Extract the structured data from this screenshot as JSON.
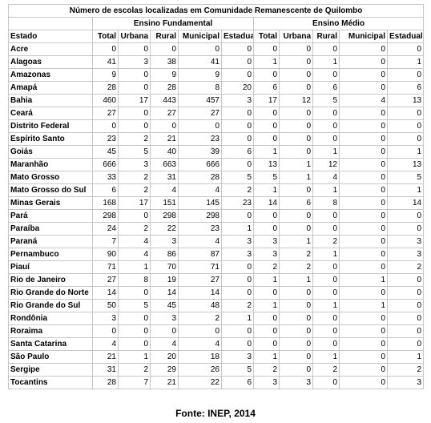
{
  "title": "Número de escolas localizadas em Comunidade Remanescente de Quilombo",
  "group_headers": [
    "Ensino Fundamental",
    "Ensino Médio"
  ],
  "columns": [
    "Estado",
    "Total",
    "Urbana",
    "Rural",
    "Municipal",
    "Estadual",
    "Total",
    "Urbana",
    "Rural",
    "Municipal",
    "Estadual"
  ],
  "rows": [
    [
      "Acre",
      "0",
      "0",
      "0",
      "0",
      "0",
      "0",
      "0",
      "0",
      "0",
      "0"
    ],
    [
      "Alagoas",
      "41",
      "3",
      "38",
      "41",
      "0",
      "1",
      "0",
      "1",
      "0",
      "1"
    ],
    [
      "Amazonas",
      "9",
      "0",
      "9",
      "9",
      "0",
      "0",
      "0",
      "0",
      "0",
      "0"
    ],
    [
      "Amapá",
      "28",
      "0",
      "28",
      "8",
      "20",
      "6",
      "0",
      "6",
      "0",
      "6"
    ],
    [
      "Bahia",
      "460",
      "17",
      "443",
      "457",
      "3",
      "17",
      "12",
      "5",
      "4",
      "13"
    ],
    [
      "Ceará",
      "27",
      "0",
      "27",
      "27",
      "0",
      "0",
      "0",
      "0",
      "0",
      "0"
    ],
    [
      "Distrito Federal",
      "0",
      "0",
      "0",
      "0",
      "0",
      "0",
      "0",
      "0",
      "0",
      "0"
    ],
    [
      "Espírito Santo",
      "23",
      "2",
      "21",
      "23",
      "0",
      "0",
      "0",
      "0",
      "0",
      "0"
    ],
    [
      "Goiás",
      "45",
      "5",
      "40",
      "39",
      "6",
      "1",
      "0",
      "1",
      "0",
      "1"
    ],
    [
      "Maranhão",
      "666",
      "3",
      "663",
      "666",
      "0",
      "13",
      "1",
      "12",
      "0",
      "13"
    ],
    [
      "Mato Grosso",
      "33",
      "2",
      "31",
      "28",
      "5",
      "5",
      "1",
      "4",
      "0",
      "5"
    ],
    [
      "Mato Grosso do Sul",
      "6",
      "2",
      "4",
      "4",
      "2",
      "1",
      "0",
      "1",
      "0",
      "1"
    ],
    [
      "Minas Gerais",
      "168",
      "17",
      "151",
      "145",
      "23",
      "14",
      "6",
      "8",
      "0",
      "14"
    ],
    [
      "Pará",
      "298",
      "0",
      "298",
      "298",
      "0",
      "0",
      "0",
      "0",
      "0",
      "0"
    ],
    [
      "Paraíba",
      "24",
      "2",
      "22",
      "23",
      "1",
      "0",
      "0",
      "0",
      "0",
      "0"
    ],
    [
      "Paraná",
      "7",
      "4",
      "3",
      "4",
      "3",
      "3",
      "1",
      "2",
      "0",
      "3"
    ],
    [
      "Pernambuco",
      "90",
      "4",
      "86",
      "87",
      "3",
      "3",
      "2",
      "1",
      "0",
      "3"
    ],
    [
      "Piauí",
      "71",
      "1",
      "70",
      "71",
      "0",
      "2",
      "2",
      "0",
      "0",
      "2"
    ],
    [
      "Rio de Janeiro",
      "27",
      "8",
      "19",
      "27",
      "0",
      "1",
      "1",
      "0",
      "1",
      "0"
    ],
    [
      "Rio Grande do Norte",
      "14",
      "0",
      "14",
      "14",
      "0",
      "0",
      "0",
      "0",
      "0",
      "0"
    ],
    [
      "Rio Grande do Sul",
      "50",
      "5",
      "45",
      "48",
      "2",
      "1",
      "0",
      "1",
      "1",
      "0"
    ],
    [
      "Rondônia",
      "3",
      "0",
      "3",
      "2",
      "1",
      "0",
      "0",
      "0",
      "0",
      "0"
    ],
    [
      "Roraima",
      "0",
      "0",
      "0",
      "0",
      "0",
      "0",
      "0",
      "0",
      "0",
      "0"
    ],
    [
      "Santa Catarina",
      "4",
      "0",
      "4",
      "4",
      "0",
      "0",
      "0",
      "0",
      "0",
      "0"
    ],
    [
      "São Paulo",
      "21",
      "1",
      "20",
      "18",
      "3",
      "1",
      "0",
      "1",
      "0",
      "1"
    ],
    [
      "Sergipe",
      "31",
      "2",
      "29",
      "26",
      "5",
      "2",
      "0",
      "2",
      "0",
      "2"
    ],
    [
      "Tocantins",
      "28",
      "7",
      "21",
      "22",
      "6",
      "3",
      "3",
      "0",
      "0",
      "3"
    ]
  ],
  "footer": "Fonte: INEP, 2014"
}
